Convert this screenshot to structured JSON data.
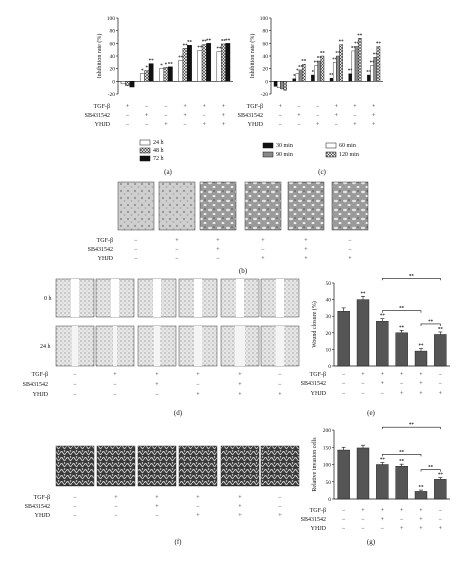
{
  "colors": {
    "black": "#111111",
    "dark_gray": "#555555",
    "mid_gray": "#8a8a8a",
    "white": "#ffffff",
    "hatch": "#333333"
  },
  "treatments": {
    "rows": [
      "TGF-β",
      "SB431542",
      "YHJD"
    ]
  },
  "panel_captions": {
    "a": "(a)",
    "b": "(b)",
    "c": "(c)",
    "d": "(d)",
    "e": "(e)",
    "f": "(f)",
    "g": "(g)"
  },
  "micro_labels": {
    "time0": "0 h",
    "time24": "24 h"
  },
  "row_marks": {
    "b": [
      [
        "−",
        "−",
        "−"
      ],
      [
        "+",
        "−",
        "−"
      ],
      [
        "+",
        "+",
        "−"
      ],
      [
        "+",
        "−",
        "+"
      ],
      [
        "+",
        "+",
        "+"
      ],
      [
        "−",
        "−",
        "+"
      ]
    ],
    "d": [
      [
        "−",
        "−",
        "−"
      ],
      [
        "+",
        "−",
        "−"
      ],
      [
        "+",
        "+",
        "−"
      ],
      [
        "+",
        "−",
        "+"
      ],
      [
        "+",
        "+",
        "+"
      ],
      [
        "−",
        "−",
        "+"
      ]
    ],
    "f": [
      [
        "−",
        "−",
        "−"
      ],
      [
        "+",
        "−",
        "−"
      ],
      [
        "+",
        "+",
        "−"
      ],
      [
        "+",
        "−",
        "+"
      ],
      [
        "+",
        "+",
        "+"
      ],
      [
        "−",
        "−",
        "+"
      ]
    ]
  },
  "chart_data": [
    {
      "id": "a",
      "type": "bar",
      "ylabel": "Inhibition rate (%)",
      "ylim": [
        -20,
        100
      ],
      "yticks": [
        -20,
        0,
        20,
        40,
        60,
        80,
        100
      ],
      "conditions": [
        {
          "TGF": "+",
          "SB": "−",
          "YHJD": "−"
        },
        {
          "TGF": "−",
          "SB": "+",
          "YHJD": "−"
        },
        {
          "TGF": "−",
          "SB": "−",
          "YHJD": "+"
        },
        {
          "TGF": "+",
          "SB": "+",
          "YHJD": "−"
        },
        {
          "TGF": "+",
          "SB": "−",
          "YHJD": "+"
        },
        {
          "TGF": "+",
          "SB": "+",
          "YHJD": "+"
        }
      ],
      "series": [
        {
          "name": "24 h",
          "style": "white",
          "values": [
            -4,
            12,
            20,
            33,
            49,
            47
          ]
        },
        {
          "name": "48 h",
          "style": "hatch",
          "values": [
            -7,
            17,
            22,
            52,
            58,
            59
          ]
        },
        {
          "name": "72 h",
          "style": "black",
          "values": [
            -9,
            28,
            23,
            57,
            60,
            60
          ]
        }
      ],
      "sig": [
        [
          "",
          "",
          ""
        ],
        [
          "*",
          "*",
          "**"
        ],
        [
          "*",
          "*",
          "**"
        ],
        [
          "**",
          "**",
          "**"
        ],
        [
          "**",
          "**",
          "**"
        ],
        [
          "**",
          "**",
          "**"
        ]
      ]
    },
    {
      "id": "c",
      "type": "bar",
      "ylabel": "Inhibition rate (%)",
      "ylim": [
        -20,
        100
      ],
      "yticks": [
        -20,
        0,
        20,
        40,
        60,
        80,
        100
      ],
      "conditions": [
        {
          "TGF": "+",
          "SB": "−",
          "YHJD": "−"
        },
        {
          "TGF": "−",
          "SB": "+",
          "YHJD": "−"
        },
        {
          "TGF": "−",
          "SB": "−",
          "YHJD": "+"
        },
        {
          "TGF": "+",
          "SB": "+",
          "YHJD": "−"
        },
        {
          "TGF": "+",
          "SB": "−",
          "YHJD": "+"
        },
        {
          "TGF": "+",
          "SB": "+",
          "YHJD": "+"
        }
      ],
      "series": [
        {
          "name": "30 min",
          "style": "black",
          "values": [
            -8,
            4,
            10,
            5,
            12,
            10
          ]
        },
        {
          "name": "60 min",
          "style": "white",
          "values": [
            -10,
            12,
            25,
            30,
            48,
            25
          ]
        },
        {
          "name": "90 min",
          "style": "gray",
          "values": [
            -12,
            18,
            32,
            40,
            55,
            38
          ]
        },
        {
          "name": "120 min",
          "style": "hatch",
          "values": [
            -14,
            27,
            40,
            58,
            68,
            55
          ]
        }
      ],
      "sig": [
        [
          "",
          "",
          "",
          ""
        ],
        [
          "*",
          "*",
          "**",
          "**"
        ],
        [
          "*",
          "**",
          "**",
          "**"
        ],
        [
          "**",
          "**",
          "**",
          "**"
        ],
        [
          "**",
          "**",
          "**",
          "**"
        ],
        [
          "**",
          "**",
          "**",
          "**"
        ]
      ]
    },
    {
      "id": "e",
      "type": "bar",
      "ylabel": "Wound closure (%)",
      "ylim": [
        0,
        50
      ],
      "yticks": [
        0,
        10,
        20,
        30,
        40,
        50
      ],
      "conditions": [
        {
          "TGF": "−",
          "SB": "−",
          "YHJD": "−"
        },
        {
          "TGF": "+",
          "SB": "−",
          "YHJD": "−"
        },
        {
          "TGF": "+",
          "SB": "+",
          "YHJD": "−"
        },
        {
          "TGF": "+",
          "SB": "−",
          "YHJD": "+"
        },
        {
          "TGF": "+",
          "SB": "+",
          "YHJD": "+"
        },
        {
          "TGF": "−",
          "SB": "−",
          "YHJD": "+"
        }
      ],
      "values": [
        33,
        40,
        27,
        20,
        9,
        19
      ],
      "errors": [
        2,
        2,
        1.5,
        1.5,
        1.5,
        1.5
      ],
      "sig": [
        "",
        "**",
        "**",
        "**",
        "**",
        "**"
      ],
      "brackets": [
        {
          "from": 2,
          "to": 4,
          "label": "**",
          "level": 0
        },
        {
          "from": 4,
          "to": 5,
          "label": "**",
          "level": 0
        },
        {
          "from": 2,
          "to": 5,
          "label": "**",
          "level": 1
        }
      ]
    },
    {
      "id": "g",
      "type": "bar",
      "ylabel": "Relative invasion cells",
      "ylim": [
        0,
        200
      ],
      "yticks": [
        0,
        50,
        100,
        150,
        200
      ],
      "conditions": [
        {
          "TGF": "−",
          "SB": "−",
          "YHJD": "−"
        },
        {
          "TGF": "+",
          "SB": "−",
          "YHJD": "−"
        },
        {
          "TGF": "+",
          "SB": "+",
          "YHJD": "−"
        },
        {
          "TGF": "+",
          "SB": "−",
          "YHJD": "+"
        },
        {
          "TGF": "+",
          "SB": "+",
          "YHJD": "+"
        },
        {
          "TGF": "−",
          "SB": "−",
          "YHJD": "+"
        }
      ],
      "values": [
        142,
        148,
        100,
        95,
        22,
        57
      ],
      "errors": [
        8,
        8,
        6,
        6,
        4,
        5
      ],
      "sig": [
        "",
        "",
        "**",
        "**",
        "**",
        "**"
      ],
      "brackets": [
        {
          "from": 2,
          "to": 4,
          "label": "**",
          "level": 0
        },
        {
          "from": 4,
          "to": 5,
          "label": "**",
          "level": 0
        },
        {
          "from": 2,
          "to": 5,
          "label": "**",
          "level": 1
        }
      ]
    }
  ]
}
